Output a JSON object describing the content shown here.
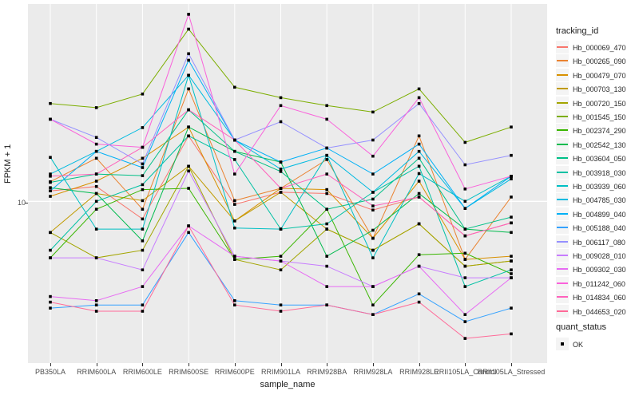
{
  "figure": {
    "y_axis": {
      "title": "FPKM + 1",
      "tick_label": "10"
    },
    "x_axis": {
      "title": "sample_name"
    },
    "legend": {
      "title": "tracking_id"
    },
    "quant_legend": {
      "title": "quant_status",
      "entry": "OK"
    },
    "panel_background": "#EBEBEB",
    "gridline_color": "#FFFFFF",
    "marker_color": "#000000"
  },
  "chart_data": {
    "type": "line",
    "title": "",
    "xlabel": "sample_name",
    "ylabel": "FPKM + 1",
    "y_scale": "log10",
    "ylim": [
      1.15,
      140
    ],
    "y_ticks": [
      10
    ],
    "grid": true,
    "legend_position": "right",
    "marker": "black-square",
    "categories": [
      "PB350LA",
      "RRIM600LA",
      "RRIM600LE",
      "RRIM600SE",
      "RRIM600PE",
      "RRIM901LA",
      "RRIM928BA",
      "RRIM928LA",
      "RRIM928LE",
      "RRII105LA_Control",
      "RRII105LA_Stressed"
    ],
    "series": [
      {
        "name": "Hb_000069_470",
        "color": "#F8766D",
        "values": [
          11.5,
          12.2,
          7.9,
          24,
          9.6,
          11.3,
          11.1,
          8.9,
          10.6,
          6.3,
          7.5
        ]
      },
      {
        "name": "Hb_000265_090",
        "color": "#EA8331",
        "values": [
          13,
          17.8,
          9.0,
          45,
          10.1,
          11.9,
          17.5,
          6.1,
          24,
          4.6,
          10.6
        ]
      },
      {
        "name": "Hb_000479_070",
        "color": "#D89000",
        "values": [
          10.7,
          13.1,
          17.8,
          27,
          7.7,
          11.9,
          11.7,
          6.1,
          13.1,
          4.6,
          4.8
        ]
      },
      {
        "name": "Hb_000703_130",
        "color": "#C09B00",
        "values": [
          6.6,
          11.1,
          10.1,
          16,
          7.7,
          11.3,
          6.9,
          5.2,
          7.4,
          4.2,
          4.5
        ]
      },
      {
        "name": "Hb_000720_150",
        "color": "#A3A500",
        "values": [
          6.6,
          4.7,
          5.2,
          16,
          4.6,
          4.0,
          6.9,
          5.2,
          7.4,
          4.2,
          4.5
        ]
      },
      {
        "name": "Hb_001545_150",
        "color": "#7CAE00",
        "values": [
          37,
          35,
          42,
          100,
          46,
          40,
          36,
          33,
          45,
          22,
          27
        ]
      },
      {
        "name": "Hb_002374_290",
        "color": "#39B600",
        "values": [
          4.7,
          9.0,
          11.7,
          11.9,
          4.6,
          4.8,
          9.0,
          2.5,
          4.9,
          5.0,
          3.8
        ]
      },
      {
        "name": "Hb_002542_130",
        "color": "#00BB4E",
        "values": [
          12,
          11.1,
          5.9,
          27,
          19.5,
          16.9,
          4.8,
          6.8,
          11.1,
          6.9,
          6.6
        ]
      },
      {
        "name": "Hb_003604_050",
        "color": "#00C087",
        "values": [
          12.9,
          14.4,
          14.1,
          34,
          19.5,
          14.9,
          9.0,
          10.3,
          17.8,
          6.9,
          8.1
        ]
      },
      {
        "name": "Hb_003918_030",
        "color": "#00C1A3",
        "values": [
          5.2,
          10,
          12.5,
          24,
          17.5,
          6.9,
          7.4,
          11.3,
          16,
          3.2,
          4.0
        ]
      },
      {
        "name": "Hb_003939_060",
        "color": "#00BFC4",
        "values": [
          18,
          6.9,
          6.9,
          54,
          7.0,
          6.9,
          18.5,
          4.7,
          14.5,
          10,
          14
        ]
      },
      {
        "name": "Hb_004785_030",
        "color": "#00BAE0",
        "values": [
          14.4,
          19.5,
          26.8,
          54,
          22.7,
          15.4,
          18.5,
          11.3,
          19.5,
          9.1,
          13.5
        ]
      },
      {
        "name": "Hb_004899_040",
        "color": "#00B0F6",
        "values": [
          11.5,
          19.5,
          15.7,
          66,
          22.7,
          16.9,
          20.4,
          14.4,
          21.5,
          9.1,
          14
        ]
      },
      {
        "name": "Hb_005188_040",
        "color": "#35A2FF",
        "values": [
          2.4,
          2.5,
          2.5,
          6.6,
          2.65,
          2.5,
          2.5,
          2.2,
          2.9,
          2.0,
          2.4
        ]
      },
      {
        "name": "Hb_006117_080",
        "color": "#9590FF",
        "values": [
          30,
          23.5,
          16.5,
          72,
          22.7,
          29,
          20.4,
          22.7,
          37,
          16.3,
          18.5
        ]
      },
      {
        "name": "Hb_009028_010",
        "color": "#C77CFF",
        "values": [
          4.7,
          4.7,
          4.0,
          15,
          4.8,
          4.5,
          4.2,
          3.2,
          4.2,
          3.6,
          3.6
        ]
      },
      {
        "name": "Hb_009302_030",
        "color": "#E76BF3",
        "values": [
          2.8,
          2.65,
          3.2,
          7.2,
          4.8,
          4.5,
          3.2,
          3.2,
          4.2,
          2.2,
          3.6
        ]
      },
      {
        "name": "Hb_011242_060",
        "color": "#FA62DB",
        "values": [
          30,
          21.5,
          20.6,
          122,
          14.4,
          36,
          30,
          18.3,
          40,
          11.8,
          14
        ]
      },
      {
        "name": "Hb_014834_060",
        "color": "#FF62BC",
        "values": [
          14,
          14.4,
          20.6,
          34,
          22.7,
          11.9,
          14.4,
          9.4,
          10.6,
          6.3,
          7.5
        ]
      },
      {
        "name": "Hb_044653_020",
        "color": "#FF6A98",
        "values": [
          2.6,
          2.3,
          2.3,
          7.2,
          2.5,
          2.3,
          2.5,
          2.2,
          2.6,
          1.6,
          1.7
        ]
      }
    ]
  }
}
